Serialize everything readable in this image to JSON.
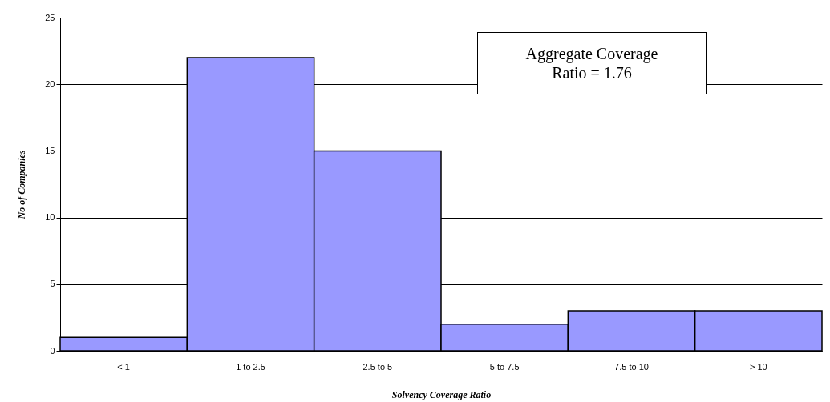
{
  "chart_data": {
    "type": "bar",
    "categories": [
      "< 1",
      "1 to 2.5",
      "2.5 to 5",
      "5 to 7.5",
      "7.5 to 10",
      "> 10"
    ],
    "values": [
      1,
      22,
      15,
      2,
      3,
      3
    ],
    "color": "#9999ff",
    "ylim": [
      0,
      25
    ],
    "yticks": [
      0,
      5,
      10,
      15,
      20,
      25
    ],
    "grid": "y",
    "xlabel": "Solvency Coverage Ratio",
    "ylabel": "No of Companies",
    "annotations": [
      "Aggregate Coverage Ratio = 1.76"
    ]
  }
}
